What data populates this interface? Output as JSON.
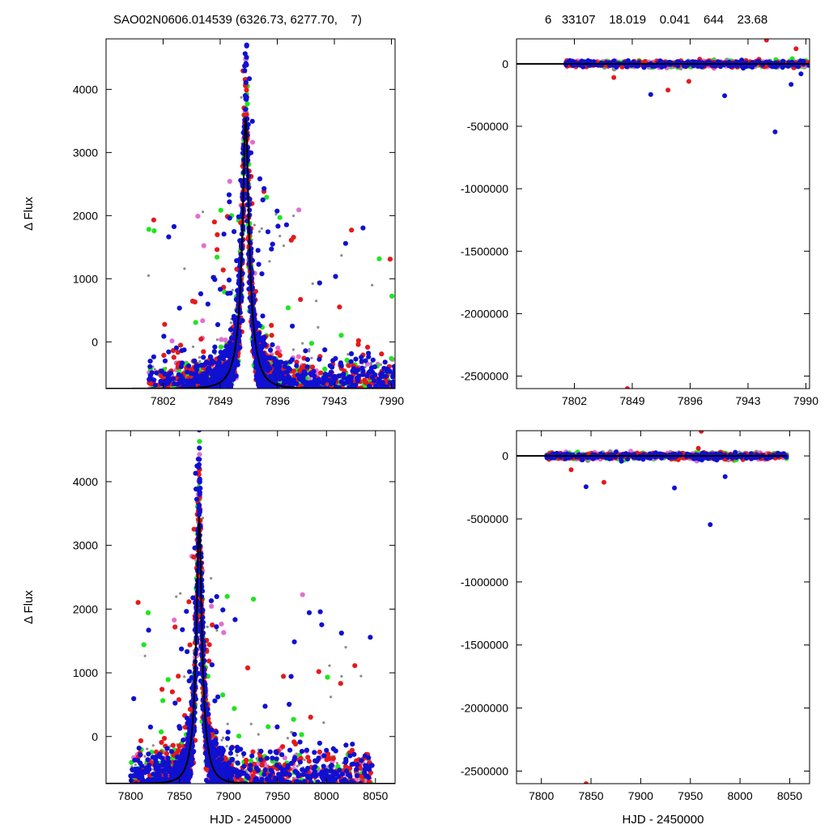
{
  "header": {
    "title": "SAO02N0606.014539 (6326.73, 6277.70,    7)",
    "stats": "6   33107    18.019    0.041    644    23.68"
  },
  "colors": {
    "red": "#e41a1c",
    "green": "#1ee51e",
    "blue": "#1010d0",
    "magenta": "#e070d0",
    "grey": "#8c8c8c",
    "model": "#000000"
  },
  "chart_data": [
    {
      "id": "top-left",
      "type": "scatter",
      "ylabel": "Δ Flux",
      "xlabel": "",
      "xlim": [
        7755,
        7993
      ],
      "ylim": [
        -740,
        4800
      ],
      "x_ticks": [
        7802,
        7849,
        7896,
        7943,
        7990
      ],
      "x_tick_labels": [
        "7802",
        "7849",
        "7896",
        "7943",
        "7990"
      ],
      "y_ticks": [
        0,
        1000,
        2000,
        3000,
        4000
      ],
      "y_tick_labels": [
        "0",
        "1000",
        "2000",
        "3000",
        "4000"
      ],
      "peak_t": 7870,
      "peak_flux": 3550,
      "width_days": 13,
      "data_start": 7790,
      "data_end": 7993,
      "model_curve": true,
      "series": [
        {
          "color": "red"
        },
        {
          "color": "green"
        },
        {
          "color": "blue"
        },
        {
          "color": "magenta"
        },
        {
          "color": "grey"
        }
      ]
    },
    {
      "id": "top-right",
      "type": "scatter",
      "ylabel": "",
      "xlabel": "",
      "xlim": [
        7755,
        7993
      ],
      "ylim": [
        -2600000,
        200000
      ],
      "x_ticks": [
        7802,
        7849,
        7896,
        7943,
        7990
      ],
      "x_tick_labels": [
        "7802",
        "7849",
        "7896",
        "7943",
        "7990"
      ],
      "y_ticks": [
        0,
        -500000,
        -1000000,
        -1500000,
        -2000000,
        -2500000
      ],
      "y_tick_labels": [
        "0",
        "-500000",
        "-1000000",
        "-1500000",
        "-2000000",
        "-2500000"
      ],
      "residual_band": true,
      "outliers": [
        {
          "x": 7845,
          "y": -2600000,
          "color": "red"
        },
        {
          "x": 7965,
          "y": -545000,
          "color": "blue"
        },
        {
          "x": 7864,
          "y": -245000,
          "color": "blue"
        },
        {
          "x": 7924,
          "y": -255000,
          "color": "blue"
        },
        {
          "x": 7878,
          "y": -210000,
          "color": "red"
        },
        {
          "x": 7978,
          "y": -165000,
          "color": "blue"
        },
        {
          "x": 7958,
          "y": 190000,
          "color": "red"
        },
        {
          "x": 7982,
          "y": 120000,
          "color": "red"
        },
        {
          "x": 7834,
          "y": -110000,
          "color": "red"
        },
        {
          "x": 7895,
          "y": -140000,
          "color": "red"
        },
        {
          "x": 7986,
          "y": -80000,
          "color": "blue"
        }
      ]
    },
    {
      "id": "bottom-left",
      "type": "scatter",
      "ylabel": "Δ Flux",
      "xlabel": "HJD - 2450000",
      "xlim": [
        7775,
        8070
      ],
      "ylim": [
        -740,
        4800
      ],
      "x_ticks": [
        7800,
        7850,
        7900,
        7950,
        8000,
        8050
      ],
      "x_tick_labels": [
        "7800",
        "7850",
        "7900",
        "7950",
        "8000",
        "8050"
      ],
      "y_ticks": [
        0,
        1000,
        2000,
        3000,
        4000
      ],
      "y_tick_labels": [
        "0",
        "1000",
        "2000",
        "3000",
        "4000"
      ],
      "peak_t": 7870,
      "peak_flux": 3450,
      "width_days": 13,
      "data_start": 7800,
      "data_end": 8047,
      "model_curve": true,
      "series": [
        {
          "color": "red"
        },
        {
          "color": "green"
        },
        {
          "color": "blue"
        },
        {
          "color": "magenta"
        },
        {
          "color": "grey"
        }
      ]
    },
    {
      "id": "bottom-right",
      "type": "scatter",
      "ylabel": "",
      "xlabel": "HJD - 2450000",
      "xlim": [
        7775,
        8070
      ],
      "ylim": [
        -2600000,
        200000
      ],
      "x_ticks": [
        7800,
        7850,
        7900,
        7950,
        8000,
        8050
      ],
      "x_tick_labels": [
        "7800",
        "7850",
        "7900",
        "7950",
        "8000",
        "8050"
      ],
      "y_ticks": [
        0,
        -500000,
        -1000000,
        -1500000,
        -2000000,
        -2500000
      ],
      "y_tick_labels": [
        "0",
        "-500000",
        "-1000000",
        "-1500000",
        "-2000000",
        "-2500000"
      ],
      "residual_band": true,
      "outliers": [
        {
          "x": 7845,
          "y": -2600000,
          "color": "red"
        },
        {
          "x": 7970,
          "y": -545000,
          "color": "blue"
        },
        {
          "x": 7845,
          "y": -245000,
          "color": "blue"
        },
        {
          "x": 7934,
          "y": -255000,
          "color": "blue"
        },
        {
          "x": 7863,
          "y": -210000,
          "color": "red"
        },
        {
          "x": 7961,
          "y": 195000,
          "color": "red"
        },
        {
          "x": 7985,
          "y": -165000,
          "color": "blue"
        },
        {
          "x": 7958,
          "y": 60000,
          "color": "red"
        },
        {
          "x": 7830,
          "y": -110000,
          "color": "red"
        }
      ]
    }
  ]
}
